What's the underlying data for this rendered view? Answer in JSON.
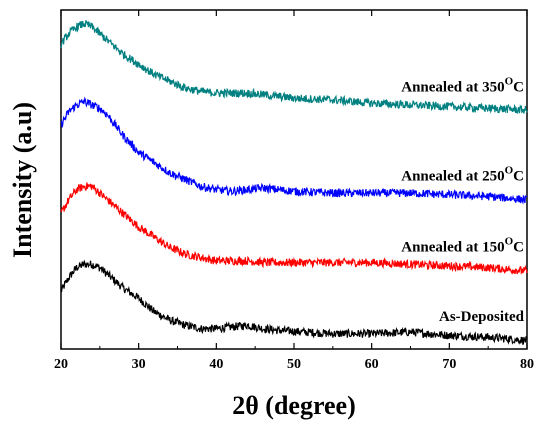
{
  "chart_data": {
    "type": "line",
    "title": "",
    "xlabel": "2θ (degree)",
    "ylabel": "Intensity (a.u)",
    "xlim": [
      20,
      80
    ],
    "xticks": [
      20,
      30,
      40,
      50,
      60,
      70,
      80
    ],
    "ylim": [
      0,
      100
    ],
    "y_tick_labels": false,
    "grid": false,
    "legend": "none",
    "series": [
      {
        "name": "As-Deposited",
        "color": "#000000",
        "label": {
          "main": "As-Deposited",
          "sup": "",
          "suffix": ""
        },
        "x": [
          20,
          21,
          22,
          23,
          24,
          25,
          26,
          27,
          28,
          30,
          32,
          34,
          36,
          38,
          40,
          42,
          44,
          46,
          48,
          50,
          55,
          60,
          65,
          70,
          75,
          80
        ],
        "y": [
          17,
          21,
          24,
          25,
          25,
          24,
          22,
          20,
          18,
          15,
          11,
          8.5,
          7,
          6,
          6,
          6.5,
          7,
          6,
          5.5,
          5.2,
          4.5,
          4.5,
          5,
          4,
          3.5,
          2.5
        ]
      },
      {
        "name": "Annealed at 150°C",
        "color": "#ff0000",
        "label": {
          "main": "Annealed at 150",
          "sup": "O",
          "suffix": "C"
        },
        "x": [
          20,
          21,
          22,
          23,
          24,
          25,
          26,
          27,
          28,
          30,
          32,
          34,
          36,
          38,
          40,
          42,
          44,
          46,
          48,
          50,
          55,
          60,
          65,
          70,
          75,
          80
        ],
        "y": [
          40,
          44,
          47,
          48,
          48,
          46,
          44,
          42,
          40,
          36,
          33,
          30,
          28,
          27,
          26,
          26,
          26,
          25.5,
          25.5,
          25.5,
          25.5,
          25.5,
          25,
          24.5,
          24,
          23
        ]
      },
      {
        "name": "Annealed at 250°C",
        "color": "#0000ff",
        "label": {
          "main": "Annealed at 250",
          "sup": "O",
          "suffix": "C"
        },
        "x": [
          20,
          21,
          22,
          23,
          24,
          25,
          26,
          27,
          28,
          30,
          32,
          34,
          36,
          38,
          40,
          42,
          44,
          46,
          48,
          50,
          55,
          60,
          65,
          70,
          75,
          80
        ],
        "y": [
          66,
          70,
          72,
          73,
          72,
          71,
          69,
          66,
          63,
          58,
          55,
          52,
          50,
          48,
          47,
          46.5,
          47,
          47.5,
          47,
          46.5,
          46,
          46,
          46,
          45.5,
          45,
          44
        ]
      },
      {
        "name": "Annealed at 350°C",
        "color": "#008080",
        "label": {
          "main": "Annealed at 350",
          "sup": "O",
          "suffix": "C"
        },
        "x": [
          20,
          21,
          22,
          23,
          24,
          25,
          26,
          27,
          28,
          30,
          32,
          34,
          36,
          38,
          40,
          42,
          44,
          46,
          48,
          50,
          55,
          60,
          65,
          70,
          75,
          80
        ],
        "y": [
          90,
          93,
          95,
          96,
          95,
          93,
          91,
          89,
          87,
          84,
          81,
          79,
          77,
          76,
          75.5,
          75.5,
          75.5,
          75,
          74.5,
          74,
          73.5,
          72.5,
          72,
          71.5,
          71,
          70.5
        ]
      }
    ]
  }
}
